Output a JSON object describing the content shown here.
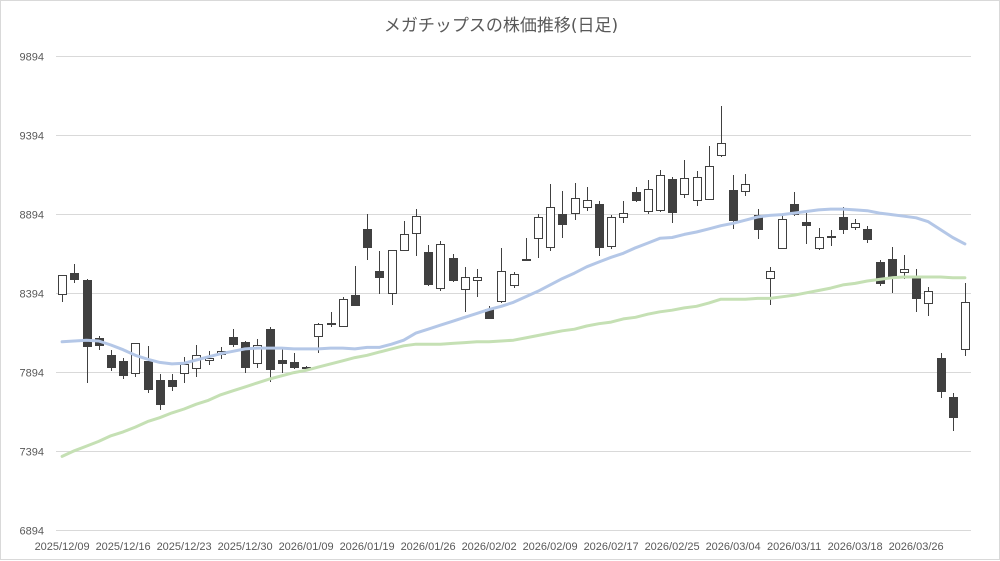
{
  "chart_data": {
    "type": "candlestick",
    "title": "メガチップスの株価推移(日足)",
    "ylim": [
      6894,
      9894
    ],
    "y_ticks": [
      9894,
      9394,
      8894,
      8394,
      7894,
      7394,
      6894
    ],
    "grid": true,
    "up_color": "#ffffff",
    "down_color": "#404040",
    "outline_color": "#404040",
    "gridline_color": "#d9d9d9",
    "candles": [
      {
        "date": "2025/12/09",
        "open": 8390,
        "high": 8510,
        "low": 8340,
        "close": 8510
      },
      {
        "open": 8520,
        "high": 8575,
        "low": 8460,
        "close": 8480
      },
      {
        "open": 8475,
        "high": 8480,
        "low": 7825,
        "close": 8060
      },
      {
        "open": 8110,
        "high": 8120,
        "low": 8035,
        "close": 8065
      },
      {
        "open": 8000,
        "high": 8035,
        "low": 7900,
        "close": 7925
      },
      {
        "date": "2025/12/16",
        "open": 7965,
        "high": 7985,
        "low": 7850,
        "close": 7875
      },
      {
        "open": 7890,
        "high": 8080,
        "low": 7860,
        "close": 8080
      },
      {
        "open": 7965,
        "high": 8060,
        "low": 7760,
        "close": 7785
      },
      {
        "open": 7845,
        "high": 7880,
        "low": 7655,
        "close": 7690
      },
      {
        "open": 7845,
        "high": 7880,
        "low": 7775,
        "close": 7805
      },
      {
        "date": "2025/12/23",
        "open": 7890,
        "high": 7990,
        "low": 7825,
        "close": 7945
      },
      {
        "open": 7920,
        "high": 8065,
        "low": 7860,
        "close": 8000
      },
      {
        "open": 7970,
        "high": 8030,
        "low": 7940,
        "close": 7985
      },
      {
        "open": 8010,
        "high": 8050,
        "low": 7975,
        "close": 8025
      },
      {
        "open": 8115,
        "high": 8165,
        "low": 8050,
        "close": 8070
      },
      {
        "date": "2025/12/30",
        "open": 8085,
        "high": 8090,
        "low": 7890,
        "close": 7925
      },
      {
        "open": 7950,
        "high": 8105,
        "low": 7920,
        "close": 8065
      },
      {
        "open": 8165,
        "high": 8180,
        "low": 7830,
        "close": 7915
      },
      {
        "open": 7970,
        "high": 8050,
        "low": 7890,
        "close": 7950
      },
      {
        "open": 7955,
        "high": 8015,
        "low": 7910,
        "close": 7925
      },
      {
        "date": "2026/01/09",
        "open": 7925,
        "high": 7935,
        "low": 7910,
        "close": 7920
      },
      {
        "open": 8120,
        "high": 8205,
        "low": 8015,
        "close": 8200
      },
      {
        "open": 8195,
        "high": 8275,
        "low": 8180,
        "close": 8205
      },
      {
        "open": 8185,
        "high": 8370,
        "low": 8180,
        "close": 8355
      },
      {
        "open": 8380,
        "high": 8565,
        "low": 8310,
        "close": 8320
      },
      {
        "date": "2026/01/19",
        "open": 8800,
        "high": 8895,
        "low": 8605,
        "close": 8685
      },
      {
        "open": 8535,
        "high": 8660,
        "low": 8390,
        "close": 8495
      },
      {
        "open": 8395,
        "high": 8665,
        "low": 8320,
        "close": 8665
      },
      {
        "open": 8665,
        "high": 8850,
        "low": 8660,
        "close": 8770
      },
      {
        "open": 8775,
        "high": 8925,
        "low": 8630,
        "close": 8880
      },
      {
        "date": "2026/01/26",
        "open": 8655,
        "high": 8700,
        "low": 8440,
        "close": 8450
      },
      {
        "open": 8425,
        "high": 8725,
        "low": 8405,
        "close": 8705
      },
      {
        "open": 8615,
        "high": 8640,
        "low": 8465,
        "close": 8475
      },
      {
        "open": 8420,
        "high": 8560,
        "low": 8275,
        "close": 8495
      },
      {
        "open": 8475,
        "high": 8545,
        "low": 8370,
        "close": 8495
      },
      {
        "date": "2026/02/02",
        "open": 8295,
        "high": 8310,
        "low": 8230,
        "close": 8235
      },
      {
        "open": 8345,
        "high": 8680,
        "low": 8330,
        "close": 8535
      },
      {
        "open": 8445,
        "high": 8525,
        "low": 8425,
        "close": 8515
      },
      {
        "open": 8610,
        "high": 8740,
        "low": 8595,
        "close": 8600
      },
      {
        "open": 8740,
        "high": 8895,
        "low": 8615,
        "close": 8875
      },
      {
        "date": "2026/02/09",
        "open": 8685,
        "high": 9085,
        "low": 8660,
        "close": 8940
      },
      {
        "open": 8895,
        "high": 9040,
        "low": 8740,
        "close": 8830
      },
      {
        "open": 8900,
        "high": 9090,
        "low": 8855,
        "close": 8995
      },
      {
        "open": 8940,
        "high": 9065,
        "low": 8915,
        "close": 8985
      },
      {
        "open": 8955,
        "high": 8975,
        "low": 8630,
        "close": 8685
      },
      {
        "date": "2026/02/17",
        "open": 8690,
        "high": 8890,
        "low": 8670,
        "close": 8875
      },
      {
        "open": 8875,
        "high": 8975,
        "low": 8835,
        "close": 8900
      },
      {
        "open": 9035,
        "high": 9065,
        "low": 8970,
        "close": 8985
      },
      {
        "open": 8915,
        "high": 9110,
        "low": 8895,
        "close": 9050
      },
      {
        "open": 8920,
        "high": 9170,
        "low": 8905,
        "close": 9140
      },
      {
        "date": "2026/02/25",
        "open": 9115,
        "high": 9130,
        "low": 8835,
        "close": 8905
      },
      {
        "open": 9020,
        "high": 9235,
        "low": 8995,
        "close": 9120
      },
      {
        "open": 8985,
        "high": 9165,
        "low": 8945,
        "close": 9130
      },
      {
        "open": 8990,
        "high": 9325,
        "low": 8985,
        "close": 9200
      },
      {
        "open": 9270,
        "high": 9580,
        "low": 9255,
        "close": 9345
      },
      {
        "date": "2026/03/04",
        "open": 9045,
        "high": 9140,
        "low": 8800,
        "close": 8855
      },
      {
        "open": 9040,
        "high": 9145,
        "low": 9010,
        "close": 9085
      },
      {
        "open": 8890,
        "high": 8925,
        "low": 8735,
        "close": 8800
      },
      {
        "open": 8490,
        "high": 8560,
        "low": 8320,
        "close": 8535
      },
      {
        "open": 8680,
        "high": 8890,
        "low": 8670,
        "close": 8860
      },
      {
        "date": "2026/03/11",
        "open": 8955,
        "high": 9035,
        "low": 8880,
        "close": 8895
      },
      {
        "open": 8845,
        "high": 8900,
        "low": 8705,
        "close": 8825
      },
      {
        "open": 8680,
        "high": 8805,
        "low": 8665,
        "close": 8750
      },
      {
        "open": 8750,
        "high": 8795,
        "low": 8690,
        "close": 8755
      },
      {
        "open": 8875,
        "high": 8940,
        "low": 8770,
        "close": 8800
      },
      {
        "date": "2026/03/18",
        "open": 8810,
        "high": 8860,
        "low": 8790,
        "close": 8835
      },
      {
        "open": 8800,
        "high": 8820,
        "low": 8710,
        "close": 8735
      },
      {
        "open": 8590,
        "high": 8605,
        "low": 8440,
        "close": 8455
      },
      {
        "open": 8610,
        "high": 8685,
        "low": 8395,
        "close": 8495
      },
      {
        "open": 8525,
        "high": 8635,
        "low": 8480,
        "close": 8545
      },
      {
        "date": "2026/03/26",
        "open": 8495,
        "high": 8545,
        "low": 8275,
        "close": 8360
      },
      {
        "open": 8330,
        "high": 8430,
        "low": 8250,
        "close": 8405
      },
      {
        "open": 7985,
        "high": 8015,
        "low": 7730,
        "close": 7775
      },
      {
        "open": 7735,
        "high": 7760,
        "low": 7520,
        "close": 7610
      },
      {
        "open": 8040,
        "high": 8460,
        "low": 7995,
        "close": 8335
      }
    ],
    "lines": [
      {
        "color": "#b4c7e7",
        "values": [
          8085,
          8090,
          8095,
          8090,
          8065,
          8035,
          8000,
          7975,
          7955,
          7945,
          7950,
          7970,
          7990,
          8010,
          8025,
          8040,
          8045,
          8045,
          8045,
          8040,
          8040,
          8040,
          8045,
          8045,
          8040,
          8050,
          8050,
          8070,
          8095,
          8140,
          8165,
          8190,
          8215,
          8240,
          8265,
          8290,
          8310,
          8335,
          8370,
          8405,
          8445,
          8485,
          8520,
          8560,
          8590,
          8620,
          8645,
          8680,
          8710,
          8740,
          8745,
          8765,
          8780,
          8800,
          8820,
          8835,
          8855,
          8875,
          8885,
          8890,
          8900,
          8910,
          8920,
          8925,
          8925,
          8920,
          8915,
          8900,
          8890,
          8880,
          8870,
          8845,
          8795,
          8745,
          8705
        ]
      },
      {
        "color": "#c5e0b4",
        "values": [
          7360,
          7395,
          7425,
          7455,
          7490,
          7515,
          7545,
          7580,
          7605,
          7635,
          7660,
          7690,
          7715,
          7750,
          7775,
          7800,
          7825,
          7850,
          7870,
          7890,
          7905,
          7925,
          7945,
          7965,
          7985,
          8000,
          8020,
          8040,
          8060,
          8070,
          8070,
          8070,
          8075,
          8080,
          8085,
          8085,
          8090,
          8095,
          8110,
          8125,
          8140,
          8155,
          8165,
          8185,
          8200,
          8210,
          8230,
          8240,
          8260,
          8275,
          8285,
          8300,
          8310,
          8330,
          8355,
          8355,
          8355,
          8360,
          8360,
          8370,
          8380,
          8395,
          8410,
          8425,
          8445,
          8455,
          8470,
          8480,
          8490,
          8495,
          8495,
          8495,
          8495,
          8490,
          8490
        ]
      }
    ]
  }
}
